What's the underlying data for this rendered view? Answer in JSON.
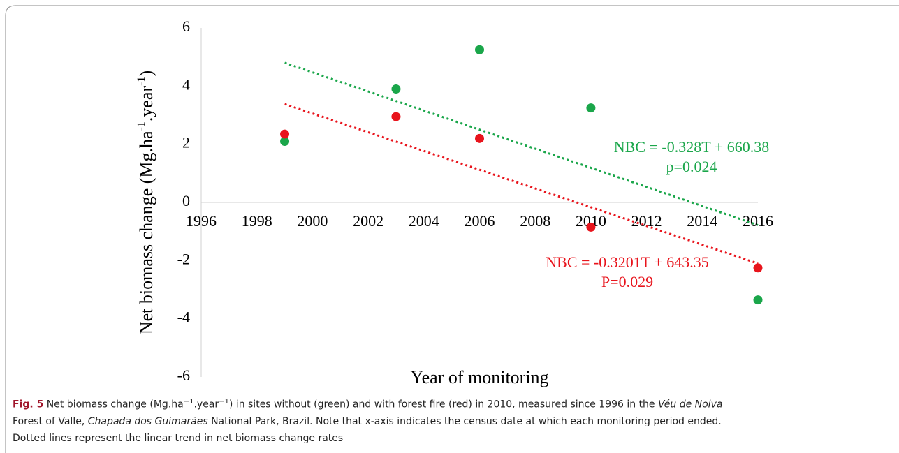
{
  "chart_data": {
    "type": "scatter",
    "ylabel": [
      "Net biomass change (Mg.ha",
      "-1",
      ".year",
      "-1",
      ")"
    ],
    "xlabel": "Year of monitoring",
    "xlim": [
      1996,
      2016
    ],
    "xticks": [
      1996,
      1998,
      2000,
      2002,
      2004,
      2006,
      2008,
      2010,
      2012,
      2014,
      2016
    ],
    "ylim": [
      -6,
      6
    ],
    "yticks": [
      -6,
      -4,
      -2,
      0,
      2,
      4,
      6
    ],
    "series": [
      {
        "color": "#1aa64a",
        "x": [
          1999,
          2003,
          2006,
          2010,
          2016
        ],
        "values": [
          2.1,
          3.9,
          5.25,
          3.25,
          -3.35
        ],
        "trend": {
          "x": [
            1999,
            2016
          ],
          "values": [
            4.8,
            -0.78
          ]
        }
      },
      {
        "color": "#e8141c",
        "x": [
          1999,
          2003,
          2006,
          2010,
          2016
        ],
        "values": [
          2.35,
          2.95,
          2.2,
          -0.85,
          -2.25
        ],
        "trend": {
          "x": [
            1999,
            2016
          ],
          "values": [
            3.38,
            -2.1
          ]
        }
      }
    ],
    "annotations": [
      {
        "lines": [
          "NBC = -0.328T + 660.38",
          "p=0.024"
        ],
        "color": "#1aa64a"
      },
      {
        "lines": [
          "NBC = -0.3201T + 643.35",
          "P=0.029"
        ],
        "color": "#e8141c"
      }
    ]
  },
  "caption": [
    [
      {
        "text": "Fig. 5",
        "style": "bold"
      },
      {
        "text": "  Net biomass change (Mg.ha"
      },
      {
        "text": "−1",
        "style": "sup"
      },
      {
        "text": ".year"
      },
      {
        "text": "−1",
        "style": "sup"
      },
      {
        "text": ") in sites without (green) and with forest fire (red) in 2010, measured since 1996 in the "
      },
      {
        "text": "Véu de Noiva",
        "style": "italic"
      }
    ],
    [
      {
        "text": "Forest of Valle, "
      },
      {
        "text": "Chapada dos Guimarães",
        "style": "italic"
      },
      {
        "text": " National Park, Brazil. Note that x-axis indicates the census date at which each monitoring period ended."
      }
    ],
    [
      {
        "text": "Dotted lines represent the linear trend in net biomass change rates"
      }
    ]
  ]
}
